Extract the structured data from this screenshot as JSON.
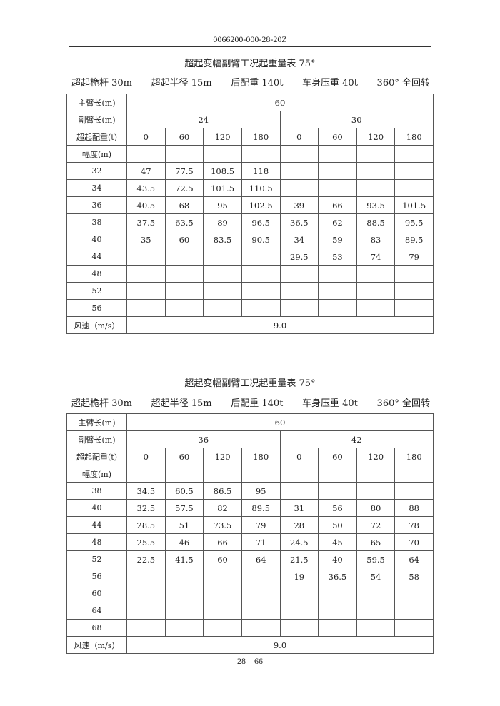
{
  "header": {
    "doc_number": "0066200-000-28-20Z"
  },
  "tables": [
    {
      "title": "超起变幅副臂工况起重量表 75°",
      "conditions": [
        "超起桅杆 30m",
        "超起半径 15m",
        "后配重 140t",
        "车身压重 40t",
        "360° 全回转"
      ],
      "main_boom_label": "主臂长(m)",
      "main_boom_value": "60",
      "jib_label": "副臂长(m)",
      "jib_values": [
        "24",
        "30"
      ],
      "counterweight_label": "超起配重(t)",
      "counterweights": [
        "0",
        "60",
        "120",
        "180",
        "0",
        "60",
        "120",
        "180"
      ],
      "radius_label": "幅度(m)",
      "rows": [
        {
          "radius": "32",
          "values": [
            "47",
            "77.5",
            "108.5",
            "118",
            "",
            "",
            "",
            ""
          ]
        },
        {
          "radius": "34",
          "values": [
            "43.5",
            "72.5",
            "101.5",
            "110.5",
            "",
            "",
            "",
            ""
          ]
        },
        {
          "radius": "36",
          "values": [
            "40.5",
            "68",
            "95",
            "102.5",
            "39",
            "66",
            "93.5",
            "101.5"
          ]
        },
        {
          "radius": "38",
          "values": [
            "37.5",
            "63.5",
            "89",
            "96.5",
            "36.5",
            "62",
            "88.5",
            "95.5"
          ]
        },
        {
          "radius": "40",
          "values": [
            "35",
            "60",
            "83.5",
            "90.5",
            "34",
            "59",
            "83",
            "89.5"
          ]
        },
        {
          "radius": "44",
          "values": [
            "",
            "",
            "",
            "",
            "29.5",
            "53",
            "74",
            "79"
          ]
        },
        {
          "radius": "48",
          "values": [
            "",
            "",
            "",
            "",
            "",
            "",
            "",
            ""
          ]
        },
        {
          "radius": "52",
          "values": [
            "",
            "",
            "",
            "",
            "",
            "",
            "",
            ""
          ]
        },
        {
          "radius": "56",
          "values": [
            "",
            "",
            "",
            "",
            "",
            "",
            "",
            ""
          ]
        }
      ],
      "wind_label": "风速（m/s）",
      "wind_value": "9.0"
    },
    {
      "title": "超起变幅副臂工况起重量表 75°",
      "conditions": [
        "超起桅杆 30m",
        "超起半径 15m",
        "后配重 140t",
        "车身压重 40t",
        "360° 全回转"
      ],
      "main_boom_label": "主臂长(m)",
      "main_boom_value": "60",
      "jib_label": "副臂长(m)",
      "jib_values": [
        "36",
        "42"
      ],
      "counterweight_label": "超起配重(t)",
      "counterweights": [
        "0",
        "60",
        "120",
        "180",
        "0",
        "60",
        "120",
        "180"
      ],
      "radius_label": "幅度(m)",
      "rows": [
        {
          "radius": "38",
          "values": [
            "34.5",
            "60.5",
            "86.5",
            "95",
            "",
            "",
            "",
            ""
          ]
        },
        {
          "radius": "40",
          "values": [
            "32.5",
            "57.5",
            "82",
            "89.5",
            "31",
            "56",
            "80",
            "88"
          ]
        },
        {
          "radius": "44",
          "values": [
            "28.5",
            "51",
            "73.5",
            "79",
            "28",
            "50",
            "72",
            "78"
          ]
        },
        {
          "radius": "48",
          "values": [
            "25.5",
            "46",
            "66",
            "71",
            "24.5",
            "45",
            "65",
            "70"
          ]
        },
        {
          "radius": "52",
          "values": [
            "22.5",
            "41.5",
            "60",
            "64",
            "21.5",
            "40",
            "59.5",
            "64"
          ]
        },
        {
          "radius": "56",
          "values": [
            "",
            "",
            "",
            "",
            "19",
            "36.5",
            "54",
            "58"
          ]
        },
        {
          "radius": "60",
          "values": [
            "",
            "",
            "",
            "",
            "",
            "",
            "",
            ""
          ]
        },
        {
          "radius": "64",
          "values": [
            "",
            "",
            "",
            "",
            "",
            "",
            "",
            ""
          ]
        },
        {
          "radius": "68",
          "values": [
            "",
            "",
            "",
            "",
            "",
            "",
            "",
            ""
          ]
        }
      ],
      "wind_label": "风速（m/s）",
      "wind_value": "9.0"
    }
  ],
  "footer": {
    "page_number": "28—66"
  },
  "colors": {
    "watermark": "#46c8f0",
    "text": "#222222"
  }
}
